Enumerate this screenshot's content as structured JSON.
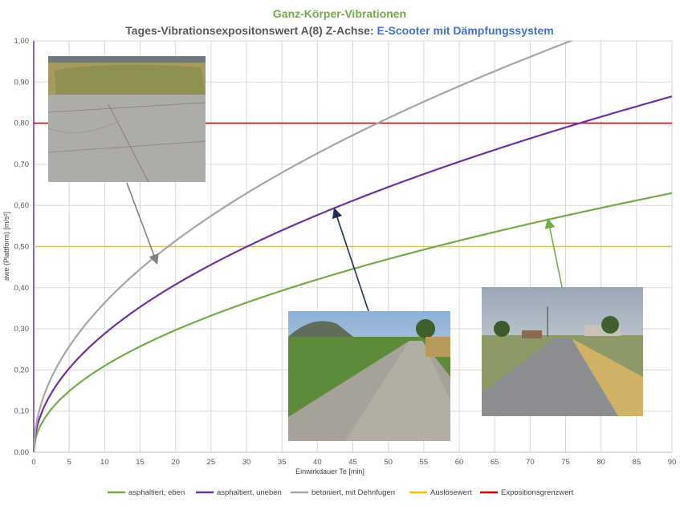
{
  "title": {
    "line1": "Ganz-Körper-Vibrationen",
    "line2_prefix": "Tages-Vibrationsexpositonswert A(8)   Z-Achse: ",
    "line2_highlight": "E-Scooter mit Dämpfungssystem"
  },
  "colors": {
    "title1": "#70ad47",
    "title2": "#595959",
    "highlight": "#4472c4",
    "grid": "#d9d9d9",
    "yaxis": "#7030a0"
  },
  "chart_data": {
    "type": "line",
    "xlabel": "Einwirkdauer Te [min]",
    "ylabel": "awe (Plattform) [m/s²]",
    "xlim": [
      0,
      90
    ],
    "ylim": [
      0,
      1.0
    ],
    "xticks": [
      "0",
      "5",
      "10",
      "15",
      "20",
      "25",
      "30",
      "35",
      "40",
      "45",
      "50",
      "55",
      "60",
      "65",
      "70",
      "75",
      "80",
      "85",
      "90"
    ],
    "yticks": [
      "0,00",
      "0,10",
      "0,20",
      "0,30",
      "0,40",
      "0,50",
      "0,60",
      "0,70",
      "0,80",
      "0,90",
      "1,00"
    ],
    "grid": true,
    "legend_position": "bottom",
    "series": [
      {
        "name": "asphaltiert, eben",
        "color": "#70ad47",
        "kind": "sqrt",
        "value_at_90": 0.63
      },
      {
        "name": "asphaltiert, uneben",
        "color": "#7030a0",
        "kind": "sqrt",
        "value_at_90": 0.865
      },
      {
        "name": "betoniert, mit Dehnfugen",
        "color": "#a6a6a6",
        "kind": "sqrt",
        "value_at_90": 1.09
      },
      {
        "name": "Auslösewert",
        "color": "#ffc000",
        "kind": "const",
        "value": 0.5
      },
      {
        "name": "Expositionsgrenzwert",
        "color": "#e00000",
        "kind": "const",
        "value": 0.8
      }
    ]
  }
}
